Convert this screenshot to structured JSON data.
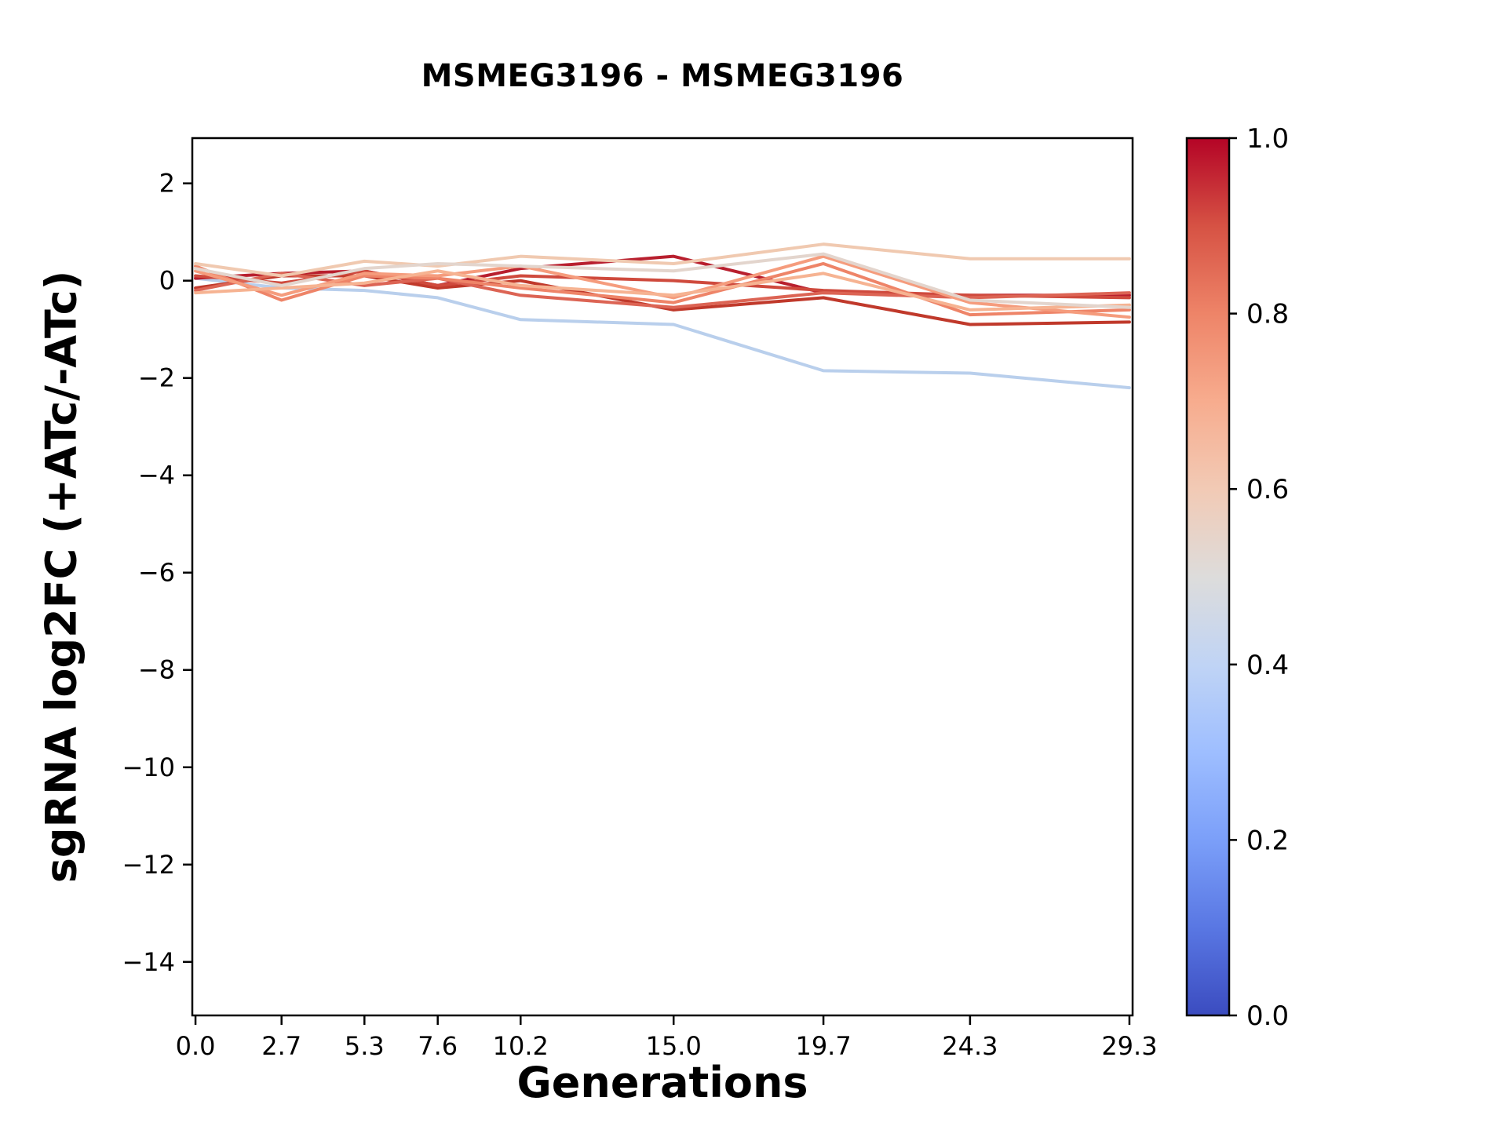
{
  "chart_data": {
    "type": "line",
    "title": "MSMEG3196 - MSMEG3196",
    "xlabel": "Generations",
    "ylabel": "sgRNA log2FC (+ATc/-ATc)",
    "x": [
      0.0,
      2.7,
      5.3,
      7.6,
      10.2,
      15.0,
      19.7,
      24.3,
      29.3
    ],
    "xtick_labels": [
      "0.0",
      "2.7",
      "5.3",
      "7.6",
      "10.2",
      "15.0",
      "19.7",
      "24.3",
      "29.3"
    ],
    "yticks": [
      2,
      0,
      -2,
      -4,
      -6,
      -8,
      -10,
      -12,
      -14
    ],
    "ytick_labels": [
      "2",
      "0",
      "−2",
      "−4",
      "−6",
      "−8",
      "−10",
      "−12",
      "−14"
    ],
    "xlim": [
      -0.1,
      29.4
    ],
    "ylim": [
      -15.1,
      2.93
    ],
    "grid": false,
    "legend": "none",
    "background": "#ffffff",
    "axis_color": "#000000",
    "series": [
      {
        "name": "line-1",
        "colormap_value": 0.4,
        "color": "#b9cfec",
        "y": [
          0.05,
          -0.15,
          -0.2,
          -0.35,
          -0.8,
          -0.9,
          -1.85,
          -1.9,
          -2.2
        ]
      },
      {
        "name": "line-2",
        "colormap_value": 0.97,
        "color": "#b81f2e",
        "y": [
          0.05,
          0.15,
          0.2,
          -0.1,
          0.25,
          0.5,
          -0.25,
          -0.3,
          -0.3
        ]
      },
      {
        "name": "line-3",
        "colormap_value": 0.95,
        "color": "#c0392b",
        "y": [
          -0.15,
          0.1,
          0.1,
          -0.15,
          0.0,
          -0.6,
          -0.35,
          -0.9,
          -0.85
        ]
      },
      {
        "name": "line-4",
        "colormap_value": 0.9,
        "color": "#cf4a3d",
        "y": [
          0.1,
          -0.05,
          0.2,
          -0.1,
          0.1,
          0.0,
          -0.2,
          -0.3,
          -0.35
        ]
      },
      {
        "name": "line-5",
        "colormap_value": 0.85,
        "color": "#dc6454",
        "y": [
          -0.2,
          0.15,
          -0.1,
          0.05,
          -0.3,
          -0.55,
          -0.25,
          -0.35,
          -0.25
        ]
      },
      {
        "name": "line-6",
        "colormap_value": 0.8,
        "color": "#ee8468",
        "y": [
          0.3,
          -0.4,
          0.1,
          0.05,
          -0.15,
          -0.45,
          0.35,
          -0.7,
          -0.6
        ]
      },
      {
        "name": "line-7",
        "colormap_value": 0.73,
        "color": "#f59c7d",
        "y": [
          0.2,
          -0.3,
          0.15,
          0.1,
          0.3,
          -0.35,
          0.5,
          -0.45,
          -0.75
        ]
      },
      {
        "name": "line-8",
        "colormap_value": 0.66,
        "color": "#f6b392",
        "y": [
          -0.25,
          -0.15,
          -0.05,
          0.2,
          -0.1,
          -0.3,
          0.15,
          -0.6,
          -0.5
        ]
      },
      {
        "name": "line-9",
        "colormap_value": 0.58,
        "color": "#f0c9b0",
        "y": [
          0.35,
          0.1,
          0.4,
          0.3,
          0.5,
          0.35,
          0.75,
          0.45,
          0.45
        ]
      },
      {
        "name": "line-10",
        "colormap_value": 0.54,
        "color": "#e3d5cd",
        "y": [
          0.25,
          -0.1,
          0.25,
          0.35,
          0.3,
          0.2,
          0.55,
          -0.4,
          -0.55
        ]
      }
    ],
    "colorbar": {
      "min": 0.0,
      "max": 1.0,
      "ticks": [
        0.0,
        0.2,
        0.4,
        0.6,
        0.8,
        1.0
      ],
      "tick_labels": [
        "0.0",
        "0.2",
        "0.4",
        "0.6",
        "0.8",
        "1.0"
      ],
      "colormap": "coolwarm",
      "gradient_stops": [
        {
          "pos": 0.0,
          "color": "#3b4cc0"
        },
        {
          "pos": 0.1,
          "color": "#5977e3"
        },
        {
          "pos": 0.2,
          "color": "#7b9ff9"
        },
        {
          "pos": 0.3,
          "color": "#9ebeff"
        },
        {
          "pos": 0.4,
          "color": "#c0d4f5"
        },
        {
          "pos": 0.5,
          "color": "#dddcdb"
        },
        {
          "pos": 0.6,
          "color": "#f2cab5"
        },
        {
          "pos": 0.7,
          "color": "#f7ac8e"
        },
        {
          "pos": 0.8,
          "color": "#ee8468"
        },
        {
          "pos": 0.9,
          "color": "#d65244"
        },
        {
          "pos": 1.0,
          "color": "#b40426"
        }
      ]
    }
  }
}
